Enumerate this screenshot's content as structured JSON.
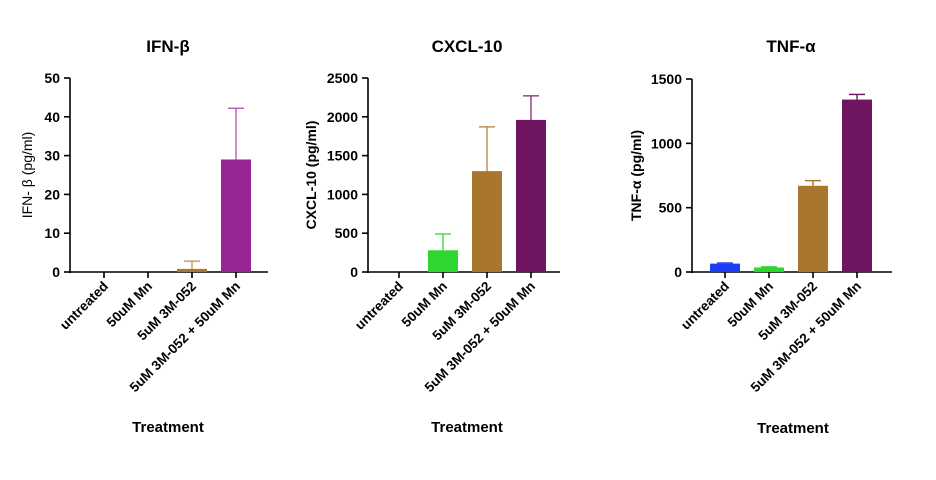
{
  "chart_data": [
    {
      "type": "bar",
      "title": "IFN-β",
      "ylabel": "IFN- β (pg/ml)",
      "xlabel": "Treatment",
      "ylim": [
        0,
        50
      ],
      "yticks": [
        0,
        10,
        20,
        30,
        40,
        50
      ],
      "categories": [
        "untreated",
        "50uM Mn",
        "5uM 3M-052",
        "5uM 3M-052 + 50uM Mn"
      ],
      "values": [
        0,
        0,
        0.8,
        29
      ],
      "errors": [
        0,
        0,
        2.0,
        13.2
      ],
      "colors": [
        "#1f3cf5",
        "#2fd62f",
        "#a8762c",
        "#962596"
      ],
      "error_colors": [
        "#1f3cf5",
        "#2fd62f",
        "#c59a5a",
        "#b55cb5"
      ]
    },
    {
      "type": "bar",
      "title": "CXCL-10",
      "ylabel": "CXCL-10 (pg/ml)",
      "xlabel": "Treatment",
      "ylim": [
        0,
        2500
      ],
      "yticks": [
        0,
        500,
        1000,
        1500,
        2000,
        2500
      ],
      "categories": [
        "untreated",
        "50uM Mn",
        "5uM 3M-052",
        "5uM 3M-052 + 50uM Mn"
      ],
      "values": [
        0,
        280,
        1300,
        1960
      ],
      "errors": [
        0,
        210,
        570,
        310
      ],
      "colors": [
        "#1f3cf5",
        "#2fd62f",
        "#a8762c",
        "#6e1460"
      ],
      "error_colors": [
        "#1f3cf5",
        "#44d944",
        "#b88a4a",
        "#8a3a7d"
      ]
    },
    {
      "type": "bar",
      "title": "TNF-α",
      "ylabel": "TNF-α (pg/ml)",
      "xlabel": "Treatment",
      "ylim": [
        0,
        1500
      ],
      "yticks": [
        0,
        500,
        1000,
        1500
      ],
      "categories": [
        "untreated",
        "50uM Mn",
        "5uM 3M-052",
        "5uM 3M-052 + 50uM Mn"
      ],
      "values": [
        65,
        35,
        670,
        1340
      ],
      "errors": [
        5,
        5,
        40,
        40
      ],
      "colors": [
        "#1f3cf5",
        "#2fd62f",
        "#a8762c",
        "#6e1460"
      ],
      "error_colors": [
        "#1f3cf5",
        "#2fd62f",
        "#a8762c",
        "#6e1460"
      ]
    }
  ]
}
